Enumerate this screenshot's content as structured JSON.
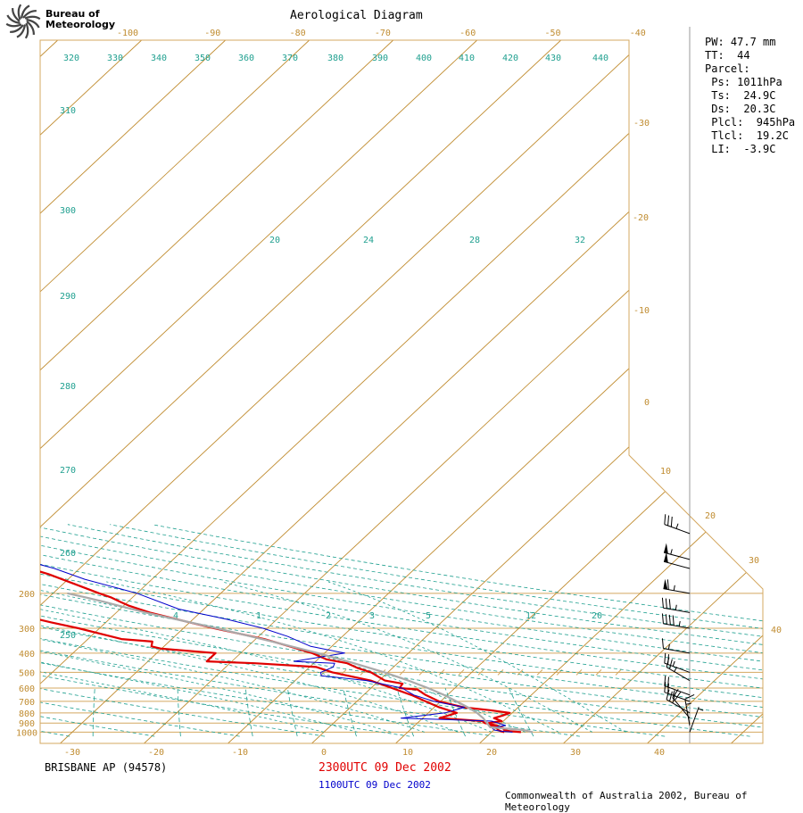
{
  "logo": {
    "line1": "Bureau of",
    "line2": "Meteorology"
  },
  "title": "Aerological Diagram",
  "info": {
    "pw": "PW: 47.7 mm",
    "tt": "TT:  44",
    "parcel": "Parcel:",
    "ps": " Ps: 1011hPa",
    "ts": " Ts:  24.9C",
    "ds": " Ds:  20.3C",
    "plcl": " Plcl:  945hPa",
    "tlcl": " Tlcl:  19.2C",
    "li": " LI:  -3.9C"
  },
  "footer": {
    "station": "BRISBANE AP (94578)",
    "run_primary": "2300UTC 09 Dec 2002",
    "run_secondary": "1100UTC 09 Dec 2002",
    "copyright": "Commonwealth of Australia 2002, Bureau of Meteorology"
  },
  "colors": {
    "isobar": "#d4a860",
    "isotherm": "#c08c30",
    "adiabat": "#20a090",
    "temp": "#e00000",
    "dewpoint_secondary": "#0000cc",
    "parcel": "#aaaaaa"
  },
  "chart_data": {
    "type": "line",
    "title": "Aerological Diagram",
    "y_axis": "pressure (hPa)",
    "pressure_ticks": [
      "200",
      "300",
      "400",
      "500",
      "600",
      "700",
      "800",
      "900",
      "1000"
    ],
    "bottom_temp_ticks": [
      "-30",
      "-20",
      "-10",
      "0",
      "10",
      "20",
      "30",
      "40"
    ],
    "top_temp_ticks": [
      "-100",
      "-90",
      "-80",
      "-70",
      "-60",
      "-50",
      "-40"
    ],
    "right_temp_ticks": [
      "-30",
      "-20",
      "-10",
      "0",
      "10",
      "20",
      "30",
      "40"
    ],
    "theta_labels": [
      "320",
      "330",
      "340",
      "350",
      "360",
      "370",
      "380",
      "390",
      "400",
      "410",
      "420",
      "430",
      "440",
      "310",
      "300",
      "290",
      "280",
      "270",
      "260",
      "250"
    ],
    "theta_e_labels": [
      "20",
      "24",
      "28",
      "32"
    ],
    "mixing_ratio_labels": [
      ".4",
      "1",
      "2",
      "3",
      "5",
      "12",
      "20"
    ],
    "series": [
      {
        "name": "2300UTC 09 Dec 2002 temperature",
        "points": [
          [
            1000,
            23.5
          ],
          [
            990,
            22.1
          ],
          [
            975,
            21.2
          ],
          [
            950,
            20.8
          ],
          [
            925,
            19.0
          ],
          [
            900,
            18.5
          ],
          [
            880,
            19.8
          ],
          [
            850,
            18.5
          ],
          [
            825,
            19.2
          ],
          [
            800,
            19.7
          ],
          [
            775,
            17.0
          ],
          [
            750,
            13.5
          ],
          [
            700,
            9.8
          ],
          [
            650,
            7.4
          ],
          [
            610,
            5.7
          ],
          [
            600,
            3.4
          ],
          [
            570,
            3.2
          ],
          [
            550,
            0.7
          ],
          [
            520,
            -0.9
          ],
          [
            500,
            -2.0
          ],
          [
            475,
            -4.2
          ],
          [
            450,
            -6.0
          ],
          [
            430,
            -9.0
          ],
          [
            400,
            -11.5
          ],
          [
            370,
            -15.0
          ],
          [
            340,
            -19.0
          ],
          [
            320,
            -22.5
          ],
          [
            300,
            -26.3
          ],
          [
            280,
            -30.0
          ],
          [
            250,
            -36.0
          ],
          [
            230,
            -39.5
          ],
          [
            220,
            -41.0
          ],
          [
            210,
            -42.5
          ],
          [
            200,
            -44.5
          ],
          [
            180,
            -48.5
          ],
          [
            160,
            -53.0
          ],
          [
            150,
            -56.0
          ],
          [
            125,
            -64.0
          ],
          [
            105,
            -71.0
          ],
          [
            100,
            -73.0
          ]
        ]
      },
      {
        "name": "2300UTC 09 Dec 2002 dewpoint",
        "points": [
          [
            1000,
            21.5
          ],
          [
            990,
            21.0
          ],
          [
            975,
            20.5
          ],
          [
            950,
            20.0
          ],
          [
            925,
            19.8
          ],
          [
            900,
            18.0
          ],
          [
            880,
            17.5
          ],
          [
            850,
            12.0
          ],
          [
            800,
            13.4
          ],
          [
            750,
            10.6
          ],
          [
            700,
            8.2
          ],
          [
            650,
            5.7
          ],
          [
            600,
            2.5
          ],
          [
            550,
            -1.0
          ],
          [
            500,
            -6.6
          ],
          [
            470,
            -9.2
          ],
          [
            450,
            -17.0
          ],
          [
            440,
            -23.0
          ],
          [
            400,
            -23.0
          ],
          [
            380,
            -30.0
          ],
          [
            370,
            -31.5
          ],
          [
            350,
            -32.0
          ],
          [
            340,
            -36.0
          ],
          [
            300,
            -42.5
          ],
          [
            280,
            -46.5
          ],
          [
            270,
            -48.5
          ],
          [
            250,
            -50.0
          ],
          [
            240,
            -52.0
          ],
          [
            230,
            -55.0
          ]
        ]
      },
      {
        "name": "1100UTC 09 Dec 2002 dewpoint",
        "points": [
          [
            1000,
            22.5
          ],
          [
            990,
            21.0
          ],
          [
            975,
            20.0
          ],
          [
            950,
            19.5
          ],
          [
            925,
            20.8
          ],
          [
            900,
            19.6
          ],
          [
            880,
            18.6
          ],
          [
            850,
            7.4
          ],
          [
            800,
            12.0
          ],
          [
            750,
            13.6
          ],
          [
            700,
            9.2
          ],
          [
            650,
            6.0
          ],
          [
            600,
            3.7
          ],
          [
            550,
            -1.5
          ],
          [
            520,
            -7.5
          ],
          [
            500,
            -8.0
          ],
          [
            470,
            -7.2
          ],
          [
            450,
            -7.5
          ],
          [
            440,
            -12.6
          ],
          [
            400,
            -7.6
          ],
          [
            370,
            -12.5
          ],
          [
            330,
            -16.5
          ],
          [
            300,
            -20.5
          ],
          [
            270,
            -26.0
          ],
          [
            240,
            -33.0
          ],
          [
            200,
            -40.0
          ],
          [
            190,
            -42.5
          ],
          [
            170,
            -48.0
          ],
          [
            150,
            -53.0
          ],
          [
            130,
            -60.0
          ],
          [
            120,
            -62.0
          ],
          [
            105,
            -66.0
          ],
          [
            100,
            -67.5
          ]
        ]
      },
      {
        "name": "parcel",
        "points": [
          [
            1000,
            24.9
          ],
          [
            975,
            23.5
          ],
          [
            945,
            19.2
          ],
          [
            900,
            18.3
          ],
          [
            850,
            17.2
          ],
          [
            800,
            15.8
          ],
          [
            750,
            14.0
          ],
          [
            700,
            11.9
          ],
          [
            650,
            9.6
          ],
          [
            600,
            6.8
          ],
          [
            550,
            3.5
          ],
          [
            500,
            -0.4
          ],
          [
            450,
            -5.2
          ],
          [
            400,
            -10.8
          ],
          [
            350,
            -17.7
          ],
          [
            300,
            -26.0
          ],
          [
            250,
            -36.5
          ],
          [
            220,
            -43.0
          ],
          [
            210,
            -45.5
          ],
          [
            200,
            -48.3
          ]
        ]
      }
    ],
    "wind_barbs": [
      {
        "p": 100,
        "speed_kt": 35,
        "dir": 290
      },
      {
        "p": 135,
        "speed_kt": 55,
        "dir": 285
      },
      {
        "p": 150,
        "speed_kt": 50,
        "dir": 285
      },
      {
        "p": 200,
        "speed_kt": 65,
        "dir": 280
      },
      {
        "p": 250,
        "speed_kt": 35,
        "dir": 280
      },
      {
        "p": 300,
        "speed_kt": 45,
        "dir": 280
      },
      {
        "p": 400,
        "speed_kt": 15,
        "dir": 280
      },
      {
        "p": 500,
        "speed_kt": 25,
        "dir": 290
      },
      {
        "p": 550,
        "speed_kt": 25,
        "dir": 300
      },
      {
        "p": 650,
        "speed_kt": 20,
        "dir": 290
      },
      {
        "p": 700,
        "speed_kt": 25,
        "dir": 290
      },
      {
        "p": 800,
        "speed_kt": 30,
        "dir": 300
      },
      {
        "p": 850,
        "speed_kt": 20,
        "dir": 320
      },
      {
        "p": 925,
        "speed_kt": 15,
        "dir": 350
      },
      {
        "p": 1000,
        "speed_kt": 5,
        "dir": 20
      }
    ]
  }
}
